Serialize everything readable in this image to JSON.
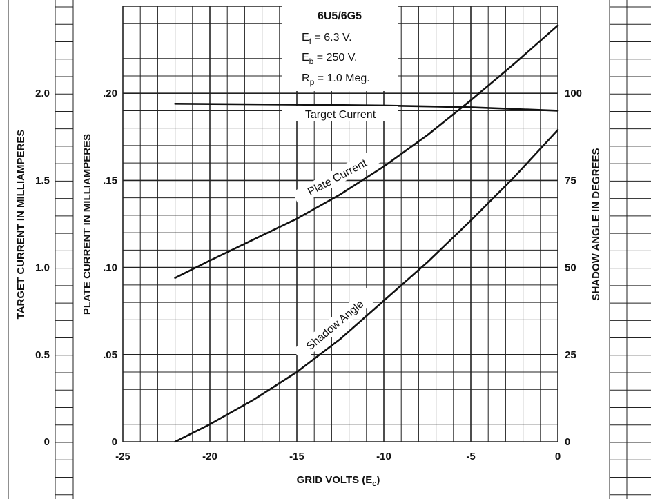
{
  "chart_data": {
    "type": "line",
    "title": "6U5/6G5",
    "conditions": [
      "E",
      "f",
      " = 6.3 V.",
      "E",
      "b",
      " = 250 V.",
      "R",
      "p",
      " = 1.0 Meg."
    ],
    "xlabel": "GRID VOLTS (E",
    "xlabel_sub": "c",
    "xlabel_end": ")",
    "xlim": [
      -25,
      0
    ],
    "xticks": [
      "-25",
      "-20",
      "-15",
      "-10",
      "-5",
      "0"
    ],
    "y_target": {
      "label": "TARGET CURRENT IN MILLIAMPERES",
      "lim": [
        0,
        2.5
      ],
      "ticks": [
        "0",
        "0.5",
        "1.0",
        "1.5",
        "2.0"
      ]
    },
    "y_plate": {
      "label": "PLATE CURRENT IN MILLIAMPERES",
      "lim": [
        0,
        0.25
      ],
      "ticks": [
        "0",
        ".05",
        ".10",
        ".15",
        ".20"
      ]
    },
    "y_shadow": {
      "label": "SHADOW ANGLE IN DEGREES",
      "lim": [
        0,
        125
      ],
      "ticks": [
        "0",
        "25",
        "50",
        "75",
        "100"
      ]
    },
    "grid": true,
    "series": [
      {
        "name": "Target Current",
        "axis": "y_target",
        "x": [
          -22,
          -15,
          -10,
          -5,
          0
        ],
        "values": [
          1.94,
          1.935,
          1.93,
          1.92,
          1.9
        ]
      },
      {
        "name": "Plate Current",
        "axis": "y_plate",
        "x": [
          -22,
          -20,
          -17.5,
          -15,
          -12.5,
          -10,
          -7.5,
          -5,
          -2.5,
          0
        ],
        "values": [
          0.094,
          0.104,
          0.116,
          0.128,
          0.142,
          0.158,
          0.176,
          0.196,
          0.217,
          0.239
        ]
      },
      {
        "name": "Shadow Angle",
        "axis": "y_shadow",
        "x": [
          -22,
          -20,
          -17.5,
          -15,
          -12.5,
          -10,
          -7.5,
          -5,
          -2.5,
          0
        ],
        "values": [
          0,
          5,
          12,
          20,
          29.5,
          40.5,
          51.5,
          63.5,
          76,
          89.5
        ]
      }
    ]
  }
}
